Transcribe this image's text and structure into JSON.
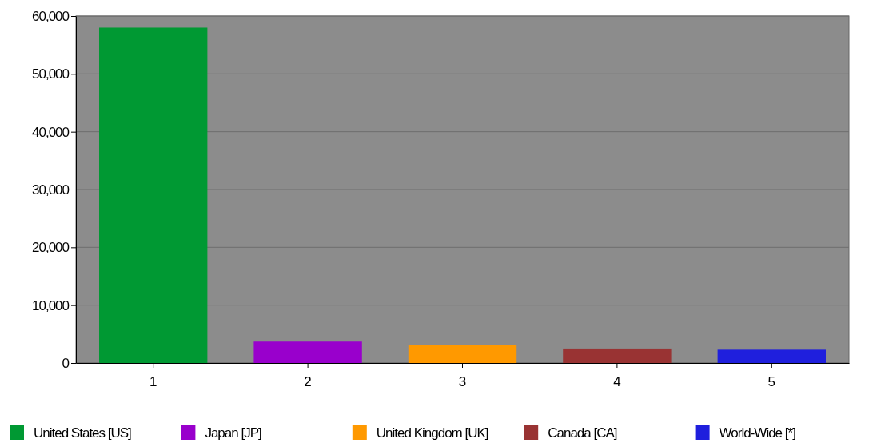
{
  "chart_data": {
    "type": "bar",
    "stacked": true,
    "categories": [
      "1",
      "2",
      "3",
      "4",
      "5"
    ],
    "series": [
      {
        "name": "United States [US]",
        "color": "#009933",
        "values": [
          58000,
          null,
          null,
          null,
          null
        ]
      },
      {
        "name": "Japan [JP]",
        "color": "#9900cc",
        "values": [
          null,
          3700,
          null,
          null,
          null
        ]
      },
      {
        "name": "United Kingdom [UK]",
        "color": "#ff9900",
        "values": [
          null,
          null,
          3100,
          null,
          null
        ]
      },
      {
        "name": "Canada [CA]",
        "color": "#993333",
        "values": [
          null,
          null,
          null,
          2500,
          null
        ]
      },
      {
        "name": "World-Wide [*]",
        "color": "#1f1fdd",
        "values": [
          null,
          null,
          null,
          null,
          2300
        ]
      }
    ],
    "ylim": [
      0,
      60000
    ],
    "yticks": [
      {
        "value": 0,
        "label": "0"
      },
      {
        "value": 10000,
        "label": "10,000"
      },
      {
        "value": 20000,
        "label": "20,000"
      },
      {
        "value": 30000,
        "label": "30,000"
      },
      {
        "value": 40000,
        "label": "40,000"
      },
      {
        "value": 50000,
        "label": "50,000"
      },
      {
        "value": 60000,
        "label": "60,000"
      }
    ],
    "grid": "y",
    "legend": "bottom"
  }
}
